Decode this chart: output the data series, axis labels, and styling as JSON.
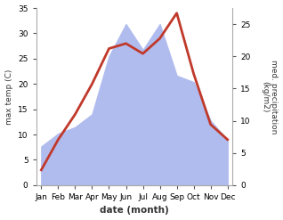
{
  "months": [
    "Jan",
    "Feb",
    "Mar",
    "Apr",
    "May",
    "Jun",
    "Jul",
    "Aug",
    "Sep",
    "Oct",
    "Nov",
    "Dec"
  ],
  "temperature": [
    3,
    9,
    14,
    20,
    27,
    28,
    26,
    29,
    34,
    22,
    12,
    9
  ],
  "precipitation": [
    6,
    8,
    9,
    11,
    20,
    25,
    21,
    25,
    17,
    16,
    10,
    7
  ],
  "temp_color": "#c0392b",
  "precip_color": "#b0bcee",
  "temp_ylim": [
    0,
    35
  ],
  "precip_ylim": [
    0,
    27.5
  ],
  "temp_yticks": [
    0,
    5,
    10,
    15,
    20,
    25,
    30,
    35
  ],
  "precip_yticks": [
    0,
    5,
    10,
    15,
    20,
    25
  ],
  "ylabel_left": "max temp (C)",
  "ylabel_right": "med. precipitation\n(kg/m2)",
  "xlabel": "date (month)",
  "line_width": 2.0,
  "bg_color": "#ffffff",
  "spine_color": "#aaaaaa",
  "tick_color": "#555555",
  "label_color": "#333333"
}
